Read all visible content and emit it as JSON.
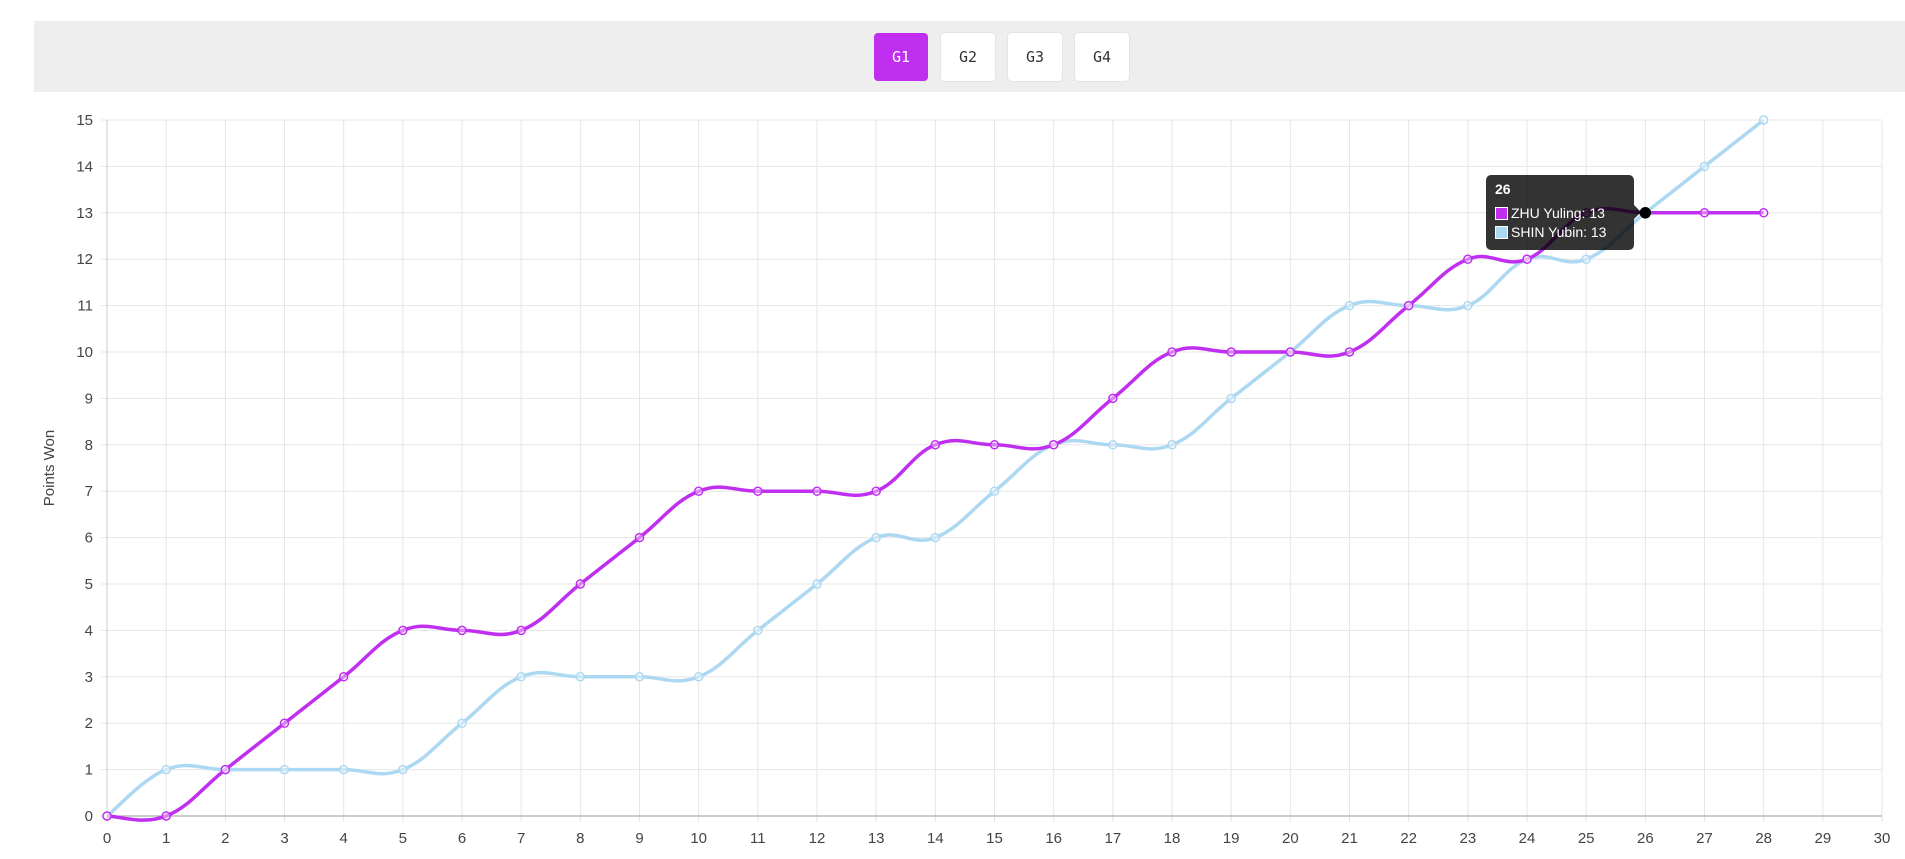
{
  "tabs": [
    {
      "label": "G1",
      "active": true
    },
    {
      "label": "G2",
      "active": false
    },
    {
      "label": "G3",
      "active": false
    },
    {
      "label": "G4",
      "active": false
    }
  ],
  "tooltip": {
    "title": "26",
    "rows": [
      {
        "text": "ZHU Yuling: 13",
        "color": "#c02fef"
      },
      {
        "text": "SHIN Yubin: 13",
        "color": "#add8f2"
      }
    ]
  },
  "chart_data": {
    "type": "line",
    "title": "",
    "xlabel": "",
    "ylabel": "Points Won",
    "xlim": [
      0,
      30
    ],
    "ylim": [
      0,
      15
    ],
    "x_ticks": [
      0,
      1,
      2,
      3,
      4,
      5,
      6,
      7,
      8,
      9,
      10,
      11,
      12,
      13,
      14,
      15,
      16,
      17,
      18,
      19,
      20,
      21,
      22,
      23,
      24,
      25,
      26,
      27,
      28,
      29,
      30
    ],
    "y_ticks": [
      0,
      1,
      2,
      3,
      4,
      5,
      6,
      7,
      8,
      9,
      10,
      11,
      12,
      13,
      14,
      15
    ],
    "grid": true,
    "x": [
      0,
      1,
      2,
      3,
      4,
      5,
      6,
      7,
      8,
      9,
      10,
      11,
      12,
      13,
      14,
      15,
      16,
      17,
      18,
      19,
      20,
      21,
      22,
      23,
      24,
      25,
      26,
      27,
      28
    ],
    "series": [
      {
        "name": "ZHU Yuling",
        "color": "#c02fef",
        "values": [
          0,
          0,
          1,
          2,
          3,
          4,
          4,
          4,
          5,
          6,
          7,
          7,
          7,
          7,
          8,
          8,
          8,
          9,
          10,
          10,
          10,
          10,
          11,
          12,
          12,
          13,
          13,
          13,
          13
        ]
      },
      {
        "name": "SHIN Yubin",
        "color": "#add8f2",
        "values": [
          0,
          1,
          1,
          1,
          1,
          1,
          2,
          3,
          3,
          3,
          3,
          4,
          5,
          6,
          6,
          7,
          8,
          8,
          8,
          9,
          10,
          11,
          11,
          11,
          12,
          12,
          13,
          14,
          15
        ]
      }
    ],
    "highlight_x": 26
  }
}
